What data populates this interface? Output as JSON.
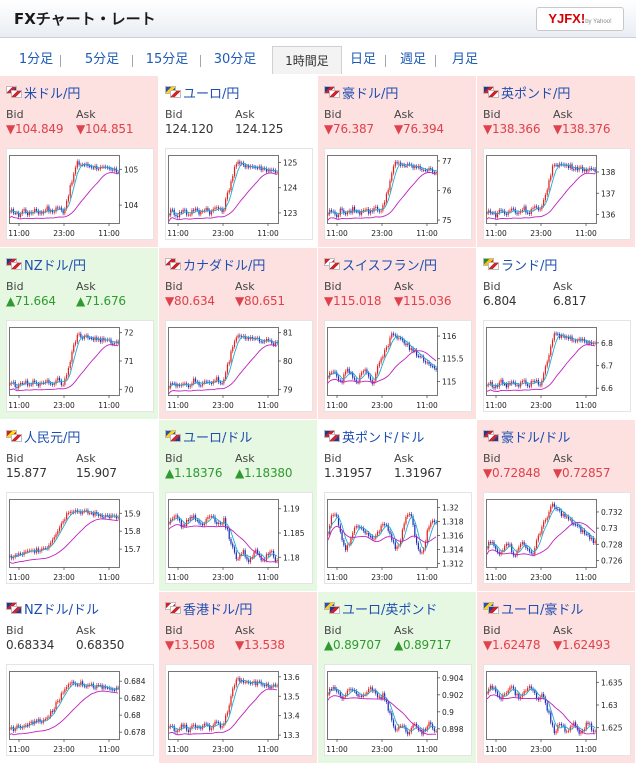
{
  "header": {
    "title": "FXチャート・レート",
    "logo_text": "YJFX!",
    "logo_sub": "by Yahoo!"
  },
  "tabs": [
    {
      "label": "1分足",
      "active": false
    },
    {
      "label": "5分足",
      "active": false
    },
    {
      "label": "15分足",
      "active": false
    },
    {
      "label": "30分足",
      "active": false
    },
    {
      "label": "1時間足",
      "active": true
    },
    {
      "label": "日足",
      "active": false
    },
    {
      "label": "週足",
      "active": false
    },
    {
      "label": "月足",
      "active": false
    }
  ],
  "labels": {
    "bid": "Bid",
    "ask": "Ask"
  },
  "colors": {
    "down_bg": "#fde0e0",
    "up_bg": "#e6f8e2",
    "down_text": "#e0414a",
    "up_text": "#2f9a2f",
    "pair_text": "#1e4fb0",
    "candle_up": "#e02020",
    "candle_down": "#1a2fb8",
    "ma_short": "#22aacc",
    "ma_long": "#c020c0"
  },
  "pairs": [
    {
      "name": "米ドル/円",
      "flag": "flag-us-jp-icon",
      "dir": "down",
      "bid": "▼104.849",
      "ask": "▼104.851",
      "chart_data": {
        "type": "candlestick",
        "x_ticks": [
          "11:00",
          "23:00",
          "11:00"
        ],
        "y_ticks": [
          "105",
          "104"
        ],
        "y_tick_values": [
          105,
          104
        ],
        "ylim": [
          103.5,
          105.4
        ],
        "shape": "surge"
      }
    },
    {
      "name": "ユーロ/円",
      "flag": "flag-eu-jp-icon",
      "dir": "none",
      "bid": "124.120",
      "ask": "124.125",
      "chart_data": {
        "type": "candlestick",
        "x_ticks": [
          "11:00",
          "23:00",
          "11:00"
        ],
        "y_ticks": [
          "125",
          "124",
          "123"
        ],
        "y_tick_values": [
          125,
          124,
          123
        ],
        "ylim": [
          122.6,
          125.3
        ],
        "shape": "surge"
      }
    },
    {
      "name": "豪ドル/円",
      "flag": "flag-au-jp-icon",
      "dir": "down",
      "bid": "▼76.387",
      "ask": "▼76.394",
      "chart_data": {
        "type": "candlestick",
        "x_ticks": [
          "11:00",
          "23:00",
          "11:00"
        ],
        "y_ticks": [
          "77",
          "76",
          "75"
        ],
        "y_tick_values": [
          77,
          76,
          75
        ],
        "ylim": [
          74.9,
          77.2
        ],
        "shape": "surge"
      }
    },
    {
      "name": "英ポンド/円",
      "flag": "flag-gb-jp-icon",
      "dir": "down",
      "bid": "▼138.366",
      "ask": "▼138.376",
      "chart_data": {
        "type": "candlestick",
        "x_ticks": [
          "11:00",
          "23:00",
          "11:00"
        ],
        "y_ticks": [
          "138",
          "137",
          "136"
        ],
        "y_tick_values": [
          138,
          137,
          136
        ],
        "ylim": [
          135.6,
          138.8
        ],
        "shape": "surge"
      }
    },
    {
      "name": "NZドル/円",
      "flag": "flag-nz-jp-icon",
      "dir": "up",
      "bid": "▲71.664",
      "ask": "▲71.676",
      "chart_data": {
        "type": "candlestick",
        "x_ticks": [
          "11:00",
          "23:00",
          "11:00"
        ],
        "y_ticks": [
          "72",
          "71",
          "70"
        ],
        "y_tick_values": [
          72,
          71,
          70
        ],
        "ylim": [
          69.8,
          72.2
        ],
        "shape": "surge"
      }
    },
    {
      "name": "カナダドル/円",
      "flag": "flag-ca-jp-icon",
      "dir": "down",
      "bid": "▼80.634",
      "ask": "▼80.651",
      "chart_data": {
        "type": "candlestick",
        "x_ticks": [
          "11:00",
          "23:00",
          "11:00"
        ],
        "y_ticks": [
          "81",
          "80",
          "79"
        ],
        "y_tick_values": [
          81,
          80,
          79
        ],
        "ylim": [
          78.8,
          81.2
        ],
        "shape": "surge"
      }
    },
    {
      "name": "スイスフラン/円",
      "flag": "flag-ch-jp-icon",
      "dir": "down",
      "bid": "▼115.018",
      "ask": "▼115.036",
      "chart_data": {
        "type": "candlestick",
        "x_ticks": [
          "11:00",
          "23:00",
          "11:00"
        ],
        "y_ticks": [
          "116",
          "115.5",
          "115"
        ],
        "y_tick_values": [
          116,
          115.5,
          115
        ],
        "ylim": [
          114.7,
          116.2
        ],
        "shape": "spike"
      }
    },
    {
      "name": "ランド/円",
      "flag": "flag-za-jp-icon",
      "dir": "none",
      "bid": "6.804",
      "ask": "6.817",
      "chart_data": {
        "type": "candlestick",
        "x_ticks": [
          "11:00",
          "23:00",
          "11:00"
        ],
        "y_ticks": [
          "6.8",
          "6.7",
          "6.6"
        ],
        "y_tick_values": [
          6.8,
          6.7,
          6.6
        ],
        "ylim": [
          6.57,
          6.87
        ],
        "shape": "surge"
      }
    },
    {
      "name": "人民元/円",
      "flag": "flag-cn-jp-icon",
      "dir": "none",
      "bid": "15.877",
      "ask": "15.907",
      "chart_data": {
        "type": "candlestick",
        "x_ticks": [
          "11:00",
          "23:00",
          "11:00"
        ],
        "y_ticks": [
          "15.9",
          "15.8",
          "15.7"
        ],
        "y_tick_values": [
          15.9,
          15.8,
          15.7
        ],
        "ylim": [
          15.6,
          15.98
        ],
        "shape": "rise"
      }
    },
    {
      "name": "ユーロ/ドル",
      "flag": "flag-eu-us-icon",
      "dir": "up",
      "bid": "▲1.18376",
      "ask": "▲1.18380",
      "chart_data": {
        "type": "candlestick",
        "x_ticks": [
          "11:00",
          "23:00",
          "11:00"
        ],
        "y_ticks": [
          "1.19",
          "1.185",
          "1.18"
        ],
        "y_tick_values": [
          1.19,
          1.185,
          1.18
        ],
        "ylim": [
          1.178,
          1.192
        ],
        "shape": "drop"
      }
    },
    {
      "name": "英ポンド/ドル",
      "flag": "flag-gb-us-icon",
      "dir": "none",
      "bid": "1.31957",
      "ask": "1.31967",
      "chart_data": {
        "type": "candlestick",
        "x_ticks": [
          "11:00",
          "23:00",
          "11:00"
        ],
        "y_ticks": [
          "1.32",
          "1.318",
          "1.316",
          "1.314",
          "1.312"
        ],
        "y_tick_values": [
          1.32,
          1.318,
          1.316,
          1.314,
          1.312
        ],
        "ylim": [
          1.3115,
          1.3212
        ],
        "shape": "volatile"
      }
    },
    {
      "name": "豪ドル/ドル",
      "flag": "flag-au-us-icon",
      "dir": "down",
      "bid": "▼0.72848",
      "ask": "▼0.72857",
      "chart_data": {
        "type": "candlestick",
        "x_ticks": [
          "11:00",
          "23:00",
          "11:00"
        ],
        "y_ticks": [
          "0.732",
          "0.73",
          "0.728",
          "0.726"
        ],
        "y_tick_values": [
          0.732,
          0.73,
          0.728,
          0.726
        ],
        "ylim": [
          0.7252,
          0.7336
        ],
        "shape": "spike"
      }
    },
    {
      "name": "NZドル/ドル",
      "flag": "flag-nz-us-icon",
      "dir": "none",
      "bid": "0.68334",
      "ask": "0.68350",
      "chart_data": {
        "type": "candlestick",
        "x_ticks": [
          "11:00",
          "23:00",
          "11:00"
        ],
        "y_ticks": [
          "0.684",
          "0.682",
          "0.68",
          "0.678"
        ],
        "y_tick_values": [
          0.684,
          0.682,
          0.68,
          0.678
        ],
        "ylim": [
          0.6772,
          0.6852
        ],
        "shape": "rise"
      }
    },
    {
      "name": "香港ドル/円",
      "flag": "flag-hk-jp-icon",
      "dir": "down",
      "bid": "▼13.508",
      "ask": "▼13.538",
      "chart_data": {
        "type": "candlestick",
        "x_ticks": [
          "11:00",
          "23:00",
          "11:00"
        ],
        "y_ticks": [
          "13.6",
          "13.5",
          "13.4",
          "13.3"
        ],
        "y_tick_values": [
          13.6,
          13.5,
          13.4,
          13.3
        ],
        "ylim": [
          13.28,
          13.63
        ],
        "shape": "surge"
      }
    },
    {
      "name": "ユーロ/英ポンド",
      "flag": "flag-eu-gb-icon",
      "dir": "up",
      "bid": "▲0.89707",
      "ask": "▲0.89717",
      "chart_data": {
        "type": "candlestick",
        "x_ticks": [
          "11:00",
          "23:00",
          "11:00"
        ],
        "y_ticks": [
          "0.904",
          "0.902",
          "0.9",
          "0.898"
        ],
        "y_tick_values": [
          0.904,
          0.902,
          0.9,
          0.898
        ],
        "ylim": [
          0.8968,
          0.9048
        ],
        "shape": "drop"
      }
    },
    {
      "name": "ユーロ/豪ドル",
      "flag": "flag-eu-au-icon",
      "dir": "down",
      "bid": "▼1.62478",
      "ask": "▼1.62493",
      "chart_data": {
        "type": "candlestick",
        "x_ticks": [
          "11:00",
          "23:00",
          "11:00"
        ],
        "y_ticks": [
          "1.635",
          "1.63",
          "1.625"
        ],
        "y_tick_values": [
          1.635,
          1.63,
          1.625
        ],
        "ylim": [
          1.6225,
          1.6375
        ],
        "shape": "drop"
      }
    }
  ]
}
